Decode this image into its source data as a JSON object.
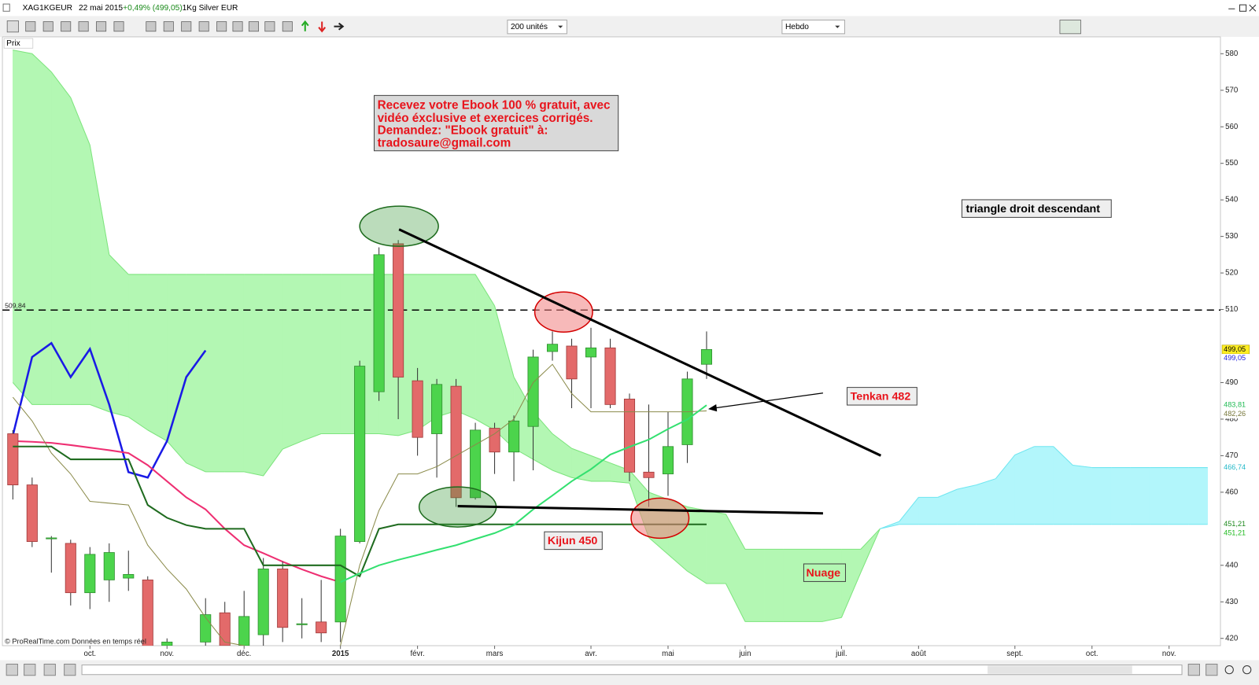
{
  "window": {
    "symbol": "XAG1KGEUR",
    "date": "22 mai 2015",
    "change": "+0,49% (499,05)",
    "name": "1Kg Silver EUR"
  },
  "toolbar": {
    "units": "200 unités",
    "period": "Hebdo"
  },
  "panel_label": "Prix",
  "footer": "© ProRealTime.com Données en temps réel",
  "notes": {
    "ebook": [
      "Recevez votre Ebook 100 % gratuit, avec",
      "vidéo éxclusive et exercices corrigés.",
      "Demandez: \"Ebook gratuit\" à:",
      "tradosaure@gmail.com"
    ],
    "triangle": "triangle droit descendant",
    "tenkan": "Tenkan 482",
    "kijun": "Kijun 450",
    "nuage": "Nuage"
  },
  "chart_data": {
    "type": "candlestick",
    "categories": [
      null,
      null,
      null,
      null,
      "oct.",
      null,
      null,
      null,
      "nov.",
      null,
      null,
      null,
      "déc.",
      null,
      null,
      null,
      null,
      "2015",
      null,
      null,
      null,
      "févr.",
      null,
      null,
      null,
      "mars",
      null,
      null,
      null,
      null,
      "avr.",
      null,
      null,
      null,
      "mai",
      null,
      null,
      null,
      "juin",
      null,
      null,
      null,
      null,
      "juil.",
      null,
      null,
      null,
      "août",
      null,
      null,
      null,
      null,
      "sept.",
      null,
      null,
      null,
      "oct.",
      null,
      null,
      null,
      "nov.",
      null,
      null
    ],
    "open": [
      476,
      462,
      447.5,
      446,
      432.5,
      436,
      436.5,
      436,
      418,
      414,
      419,
      427,
      418,
      421,
      439,
      424,
      424.5,
      424.5,
      446.5,
      487.5,
      528,
      490.5,
      476,
      489,
      458.5,
      477.5,
      471,
      478,
      498.5,
      500,
      497,
      499.5,
      485.5,
      465.5,
      465,
      473,
      495,
      null,
      null,
      null,
      null,
      null,
      null,
      null,
      null,
      null,
      null,
      null,
      null,
      null,
      null,
      null,
      null,
      null,
      null,
      null,
      null,
      null,
      null,
      null,
      null,
      null,
      null
    ],
    "high": [
      477,
      464,
      448,
      447,
      445,
      446,
      444,
      437,
      420,
      418,
      431,
      430,
      433,
      442,
      441,
      431,
      436,
      450,
      496,
      527,
      529,
      494,
      491,
      491,
      479,
      479,
      481,
      499,
      504,
      502,
      505,
      502,
      487,
      484,
      482,
      493,
      504,
      null,
      null,
      null,
      null,
      null,
      null,
      null,
      null,
      null,
      null,
      null,
      null,
      null,
      null,
      null,
      null,
      null,
      null,
      null,
      null,
      null,
      null,
      null,
      null,
      null,
      null
    ],
    "low": [
      458,
      445,
      438,
      429,
      428,
      430,
      433,
      415,
      415,
      410,
      416,
      415,
      415,
      417,
      419,
      420,
      419,
      419,
      446,
      485,
      480,
      470,
      464,
      456,
      458,
      465,
      463,
      466,
      496,
      483,
      483,
      483,
      463,
      456,
      459,
      468,
      491,
      null,
      null,
      null,
      null,
      null,
      null,
      null,
      null,
      null,
      null,
      null,
      null,
      null,
      null,
      null,
      null,
      null,
      null,
      null,
      null,
      null,
      null,
      null,
      null,
      null,
      null
    ],
    "close": [
      462,
      446.5,
      447.5,
      432.5,
      443,
      443.5,
      437.5,
      417,
      419,
      416,
      426.5,
      418,
      426,
      439,
      423,
      424,
      421.5,
      448,
      494.5,
      525,
      491.5,
      475,
      489.5,
      458.5,
      477,
      471,
      479.5,
      497,
      500.5,
      491,
      499.5,
      484,
      465.5,
      464,
      472.5,
      491,
      499.05,
      null,
      null,
      null,
      null,
      null,
      null,
      null,
      null,
      null,
      null,
      null,
      null,
      null,
      null,
      null,
      null,
      null,
      null,
      null,
      null,
      null,
      null,
      null,
      null,
      null,
      null
    ],
    "up_color": "#4cd44c",
    "down_color": "#e36a6a",
    "ylim": [
      418,
      584.6
    ],
    "yticks": [
      420,
      430,
      440,
      460,
      470,
      480,
      490,
      510,
      520,
      530,
      540,
      550,
      560,
      570,
      580
    ],
    "series": [
      {
        "color": "#1a1ae6",
        "values": [
          475.5,
          497,
          500.8,
          491.5,
          499.2,
          484,
          465.5,
          464,
          474,
          491.5,
          498.8,
          null,
          null,
          null,
          null,
          null,
          null,
          null,
          null,
          null,
          null,
          null,
          null,
          null,
          null,
          null,
          null,
          null,
          null,
          null,
          null,
          null,
          null,
          null,
          null,
          null,
          null,
          null,
          null,
          null,
          null,
          null,
          null,
          null,
          null,
          null,
          null,
          null,
          null,
          null,
          null,
          null,
          null,
          null,
          null,
          null,
          null,
          null,
          null,
          null,
          null,
          null,
          null
        ]
      },
      {
        "color": "#8a8a4a",
        "values": [
          486,
          479.5,
          470.7,
          465,
          457.5,
          457,
          456.5,
          445.5,
          439,
          433.5,
          425.7,
          419,
          418,
          416,
          416,
          416,
          416,
          418,
          440,
          455,
          465,
          465,
          467,
          470,
          473,
          476,
          480,
          490,
          495,
          487,
          482,
          482,
          482,
          482,
          482,
          482,
          482.26,
          null,
          null,
          null,
          null,
          null,
          null,
          null,
          null,
          null,
          null,
          null,
          null,
          null,
          null,
          null,
          null,
          null,
          null,
          null,
          null,
          null,
          null,
          null,
          null,
          null,
          null
        ]
      },
      {
        "color": "#1f6b1f",
        "values": [
          472.5,
          472.5,
          472.5,
          469,
          469,
          469,
          469,
          456.5,
          453,
          451,
          450,
          450,
          450,
          440,
          440,
          440,
          440,
          440,
          437,
          450,
          451.21,
          451.21,
          451.21,
          451.21,
          451.21,
          451.21,
          451.21,
          451.21,
          451.21,
          451.21,
          451.21,
          451.21,
          451.21,
          451.21,
          451.21,
          451.21,
          451.21,
          null,
          null,
          null,
          null,
          null,
          null,
          null,
          null,
          null,
          null,
          null,
          null,
          null,
          null,
          null,
          null,
          null,
          null,
          null,
          null,
          null,
          null,
          null,
          null,
          null,
          null
        ]
      },
      {
        "color": "#ee2f72",
        "values": [
          474,
          473.8,
          473.5,
          472.9,
          472.2,
          471.5,
          470.7,
          467.4,
          463,
          458.6,
          455.3,
          450,
          445.5,
          443.3,
          441,
          438.9,
          437,
          435.4,
          null,
          null,
          null,
          null,
          null,
          null,
          null,
          null,
          null,
          null,
          null,
          null,
          null,
          null,
          null,
          null,
          null,
          null,
          null,
          null,
          null,
          null,
          null,
          null,
          null,
          null,
          null,
          null,
          null,
          null,
          null,
          null,
          null,
          null,
          null,
          null,
          null,
          null,
          null,
          null,
          null,
          null,
          null,
          null,
          null
        ]
      },
      {
        "color": "#33e070",
        "values": [
          null,
          null,
          null,
          null,
          null,
          null,
          null,
          null,
          null,
          null,
          null,
          null,
          null,
          null,
          null,
          null,
          null,
          435.4,
          437.8,
          440,
          441.5,
          442.8,
          444.2,
          445.5,
          447.2,
          448.8,
          451,
          455.3,
          459.1,
          463,
          466.3,
          470.3,
          472.4,
          474.4,
          477.3,
          479.9,
          483.81,
          null,
          null,
          null,
          null,
          null,
          null,
          null,
          null,
          null,
          null,
          null,
          null,
          null,
          null,
          null,
          null,
          null,
          null,
          null,
          null,
          null,
          null,
          null,
          null,
          null,
          null
        ]
      }
    ],
    "cloud": {
      "senkou_a": [
        581,
        580,
        575,
        568,
        555,
        525,
        519.6,
        519.6,
        519.6,
        519.6,
        519.6,
        519.6,
        519.6,
        519.6,
        519.6,
        519.6,
        519.6,
        519.6,
        519.6,
        519.6,
        519.6,
        519.6,
        519.6,
        519.6,
        519.6,
        511,
        491.5,
        482,
        476,
        472,
        470,
        468,
        466,
        460,
        458,
        456,
        455,
        454,
        444.4,
        444.4,
        444.4,
        444.4,
        444.4,
        444.4,
        444.4,
        450,
        451.21,
        451.21,
        451.21,
        451.21,
        451.21,
        451.21,
        451.21,
        451.21,
        451.21,
        451.21,
        451.21,
        451.21,
        451.21,
        451.21,
        451.21,
        451.21,
        451.21
      ],
      "senkou_b": [
        490,
        484,
        484,
        484,
        484,
        482,
        480.6,
        477,
        474,
        468,
        465.6,
        465.6,
        465.6,
        464.5,
        471.8,
        474,
        476,
        476,
        476,
        476,
        475.5,
        477,
        480.6,
        482.3,
        480,
        477,
        472,
        469,
        466,
        464,
        463,
        463,
        462.5,
        447.6,
        443,
        438.4,
        435,
        435,
        424.6,
        424.6,
        424.6,
        424.6,
        424.6,
        425.7,
        438,
        450,
        452,
        458.6,
        458.6,
        460.8,
        462,
        463.7,
        470.2,
        472.5,
        472.5,
        467.4,
        466.74,
        466.74,
        466.74,
        466.74,
        466.74,
        466.74,
        466.74
      ],
      "bull_color": "#b3f7b3",
      "bear_color": "#b2f6fb"
    },
    "reference_line": {
      "value": 509.84,
      "label": "509,84"
    },
    "price_tags": [
      {
        "value": 499.05,
        "label": "499,05",
        "color": "#000000",
        "background": "#ffee22"
      },
      {
        "value": 499.05,
        "label": "499,05",
        "color": "#2222dd"
      },
      {
        "value": 483.81,
        "label": "483,81",
        "color": "#22bb55"
      },
      {
        "value": 482.26,
        "label": "482,26",
        "color": "#77773a"
      },
      {
        "value": 466.74,
        "label": "466,74",
        "color": "#22b8c8"
      },
      {
        "value": 451.21,
        "label": "451,21",
        "color": "#1f8a1f"
      },
      {
        "value": 451.21,
        "label": "451,21",
        "color": "#22bb22"
      }
    ]
  }
}
